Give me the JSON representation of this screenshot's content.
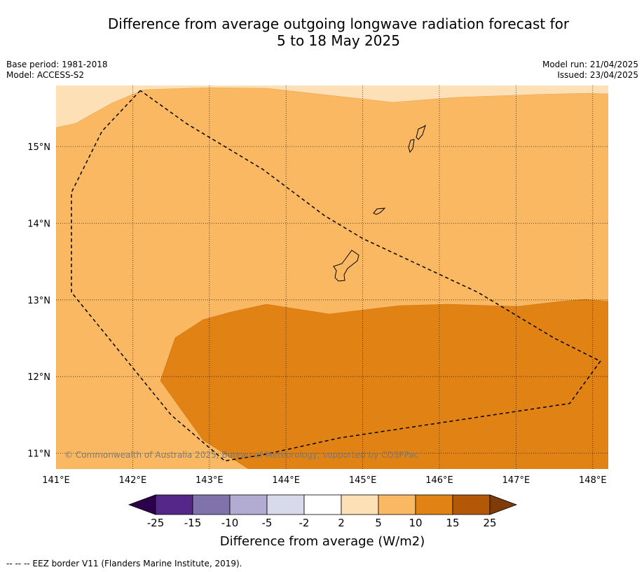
{
  "header": {
    "title_line1": "Difference from average outgoing longwave radiation forecast for",
    "title_line2": "5 to 18 May 2025",
    "base_period": "Base period: 1981-2018",
    "model": "Model: ACCESS-S2",
    "model_run": "Model run: 21/04/2025",
    "issued": "Issued: 23/04/2025"
  },
  "chart_data": {
    "type": "heatmap",
    "x_range": [
      141.0,
      148.2
    ],
    "y_range": [
      10.8,
      15.8
    ],
    "x_tick_values": [
      141,
      142,
      143,
      144,
      145,
      146,
      147,
      148
    ],
    "y_tick_values": [
      11,
      12,
      13,
      14,
      15
    ],
    "x_tick_labels": [
      "141°E",
      "142°E",
      "143°E",
      "144°E",
      "145°E",
      "146°E",
      "147°E",
      "148°E"
    ],
    "y_tick_labels": [
      "11°N",
      "12°N",
      "13°N",
      "14°N",
      "15°N"
    ],
    "grid": true,
    "regions": [
      {
        "range": "2 to 5",
        "color": "#fde0b5",
        "area": "northern strip"
      },
      {
        "range": "5 to 10",
        "color": "#fbb862",
        "area": "central band"
      },
      {
        "range": "10 to 15",
        "color": "#e08214",
        "area": "southern half"
      }
    ],
    "eez_border": [
      [
        142.1,
        15.73
      ],
      [
        141.6,
        15.2
      ],
      [
        141.2,
        14.4
      ],
      [
        141.2,
        13.1
      ],
      [
        142.5,
        11.5
      ],
      [
        143.2,
        10.9
      ],
      [
        143.7,
        10.98
      ],
      [
        144.7,
        11.2
      ],
      [
        147.7,
        11.65
      ],
      [
        148.1,
        12.2
      ],
      [
        147.5,
        12.5
      ],
      [
        146.5,
        13.1
      ],
      [
        145.0,
        13.8
      ],
      [
        144.5,
        14.1
      ],
      [
        143.7,
        14.7
      ],
      [
        142.7,
        15.3
      ],
      [
        142.1,
        15.73
      ]
    ],
    "colorbar": {
      "label": "Difference from average (W/m2)",
      "tick_labels": [
        "-25",
        "-15",
        "-10",
        "-5",
        "-2",
        "2",
        "5",
        "10",
        "15",
        "25"
      ],
      "colors": [
        "#2d004b",
        "#542788",
        "#8073ac",
        "#b2abd2",
        "#d8daeb",
        "#ffffff",
        "#fde0b5",
        "#fbb862",
        "#e08214",
        "#b35806",
        "#7f3b08"
      ]
    }
  },
  "copyright": "© Commonwealth of Australia 2025, Bureau of Meteorology, supported by COSPPac",
  "footnote": "-- -- -- EEZ border V11 (Flanders Marine Institute, 2019)."
}
